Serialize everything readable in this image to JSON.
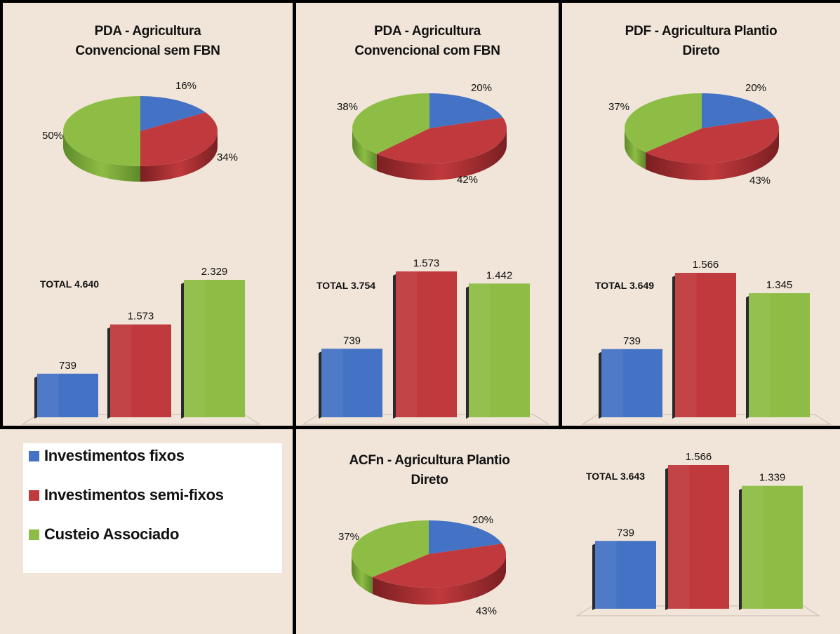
{
  "colors": {
    "investimentos_fixos": "#4472c4",
    "investimentos_semi_fixos": "#c0393c",
    "custeio_associado": "#8ebd45",
    "background": "#f0e5d8"
  },
  "legend": {
    "items": [
      {
        "label": "Investimentos fixos",
        "color": "#4472c4"
      },
      {
        "label": "Investimentos semi-fixos",
        "color": "#c0393c"
      },
      {
        "label": "Custeio Associado",
        "color": "#8ebd45"
      }
    ]
  },
  "chart_data": [
    {
      "type": "pie",
      "title_lines": [
        "PDA - Agricultura",
        "Convencional sem FBN"
      ],
      "categories": [
        "Investimentos fixos",
        "Investimentos semi-fixos",
        "Custeio Associado"
      ],
      "values": [
        16,
        34,
        50
      ],
      "labels": [
        "16%",
        "34%",
        "50%"
      ]
    },
    {
      "type": "bar",
      "total_label": "TOTAL",
      "total_value": "4.640",
      "categories": [
        "Investimentos fixos",
        "Investimentos semi-fixos",
        "Custeio Associado"
      ],
      "values": [
        739,
        1573,
        2329
      ],
      "labels": [
        "739",
        "1.573",
        "2.329"
      ]
    },
    {
      "type": "pie",
      "title_lines": [
        "PDA - Agricultura",
        "Convencional com FBN"
      ],
      "categories": [
        "Investimentos fixos",
        "Investimentos semi-fixos",
        "Custeio Associado"
      ],
      "values": [
        20,
        42,
        38
      ],
      "labels": [
        "20%",
        "42%",
        "38%"
      ]
    },
    {
      "type": "bar",
      "total_label": "TOTAL",
      "total_value": "3.754",
      "categories": [
        "Investimentos fixos",
        "Investimentos semi-fixos",
        "Custeio Associado"
      ],
      "values": [
        739,
        1573,
        1442
      ],
      "labels": [
        "739",
        "1.573",
        "1.442"
      ]
    },
    {
      "type": "pie",
      "title_lines": [
        "PDF - Agricultura Plantio",
        "Direto"
      ],
      "categories": [
        "Investimentos fixos",
        "Investimentos semi-fixos",
        "Custeio Associado"
      ],
      "values": [
        20,
        43,
        37
      ],
      "labels": [
        "20%",
        "43%",
        "37%"
      ]
    },
    {
      "type": "bar",
      "total_label": "TOTAL",
      "total_value": "3.649",
      "categories": [
        "Investimentos fixos",
        "Investimentos semi-fixos",
        "Custeio Associado"
      ],
      "values": [
        739,
        1566,
        1345
      ],
      "labels": [
        "739",
        "1.566",
        "1.345"
      ]
    },
    {
      "type": "pie",
      "title_lines": [
        "ACFn - Agricultura Plantio",
        "Direto"
      ],
      "categories": [
        "Investimentos fixos",
        "Investimentos semi-fixos",
        "Custeio Associado"
      ],
      "values": [
        20,
        43,
        37
      ],
      "labels": [
        "20%",
        "43%",
        "37%"
      ]
    },
    {
      "type": "bar",
      "total_label": "TOTAL",
      "total_value": "3.643",
      "categories": [
        "Investimentos fixos",
        "Investimentos semi-fixos",
        "Custeio Associado"
      ],
      "values": [
        739,
        1566,
        1339
      ],
      "labels": [
        "739",
        "1.566",
        "1.339"
      ]
    }
  ]
}
